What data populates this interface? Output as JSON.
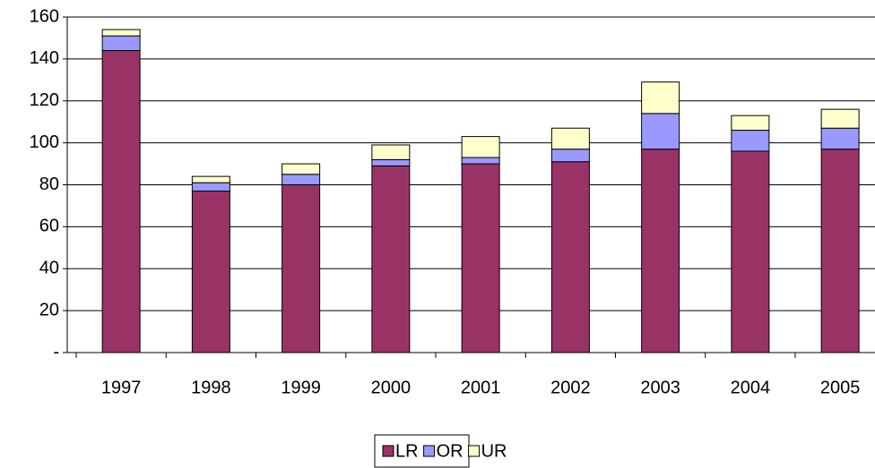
{
  "chart_data": {
    "type": "stacked-bar",
    "categories": [
      "1997",
      "1998",
      "1999",
      "2000",
      "2001",
      "2002",
      "2003",
      "2004",
      "2005"
    ],
    "series": [
      {
        "name": "LR",
        "color": "#993366",
        "values": [
          144,
          77,
          80,
          89,
          90,
          91,
          97,
          96,
          97
        ]
      },
      {
        "name": "OR",
        "color": "#9999ff",
        "values": [
          7,
          4,
          5,
          3,
          3,
          6,
          17,
          10,
          10
        ]
      },
      {
        "name": "UR",
        "color": "#ffffcc",
        "values": [
          3,
          3,
          5,
          7,
          10,
          10,
          15,
          7,
          9
        ]
      }
    ],
    "ylim": [
      0,
      160
    ],
    "yticks": [
      {
        "value": 0,
        "label": "-"
      },
      20,
      40,
      60,
      80,
      100,
      120,
      140,
      160
    ],
    "grid": true,
    "legend": "bottom"
  }
}
